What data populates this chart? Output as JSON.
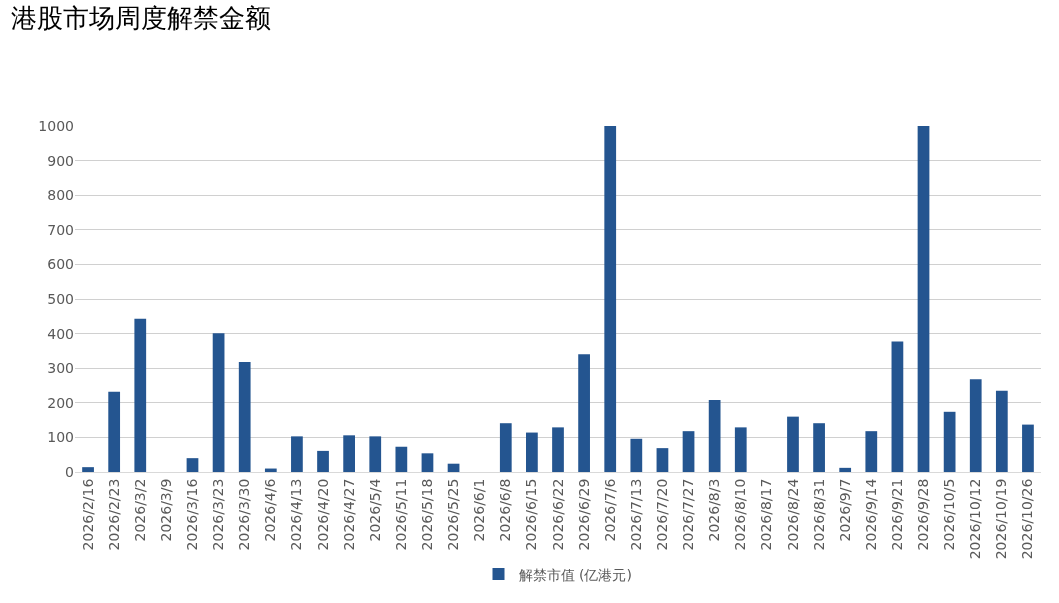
{
  "chart_data": {
    "type": "bar",
    "title": "港股市场周度解禁金额",
    "categories": [
      "2026/2/16",
      "2026/2/23",
      "2026/3/2",
      "2026/3/9",
      "2026/3/16",
      "2026/3/23",
      "2026/3/30",
      "2026/4/6",
      "2026/4/13",
      "2026/4/20",
      "2026/4/27",
      "2026/5/4",
      "2026/5/11",
      "2026/5/18",
      "2026/5/25",
      "2026/6/1",
      "2026/6/8",
      "2026/6/15",
      "2026/6/22",
      "2026/6/29",
      "2026/7/6",
      "2026/7/13",
      "2026/7/20",
      "2026/7/27",
      "2026/8/3",
      "2026/8/10",
      "2026/8/17",
      "2026/8/24",
      "2026/8/31",
      "2026/9/7",
      "2026/9/14",
      "2026/9/21",
      "2026/9/28",
      "2026/10/5",
      "2026/10/12",
      "2026/10/19",
      "2026/10/26"
    ],
    "series": [
      {
        "name": "解禁市值 (亿港元)",
        "color": "#245590",
        "values": [
          14,
          232,
          443,
          0,
          40,
          401,
          318,
          10,
          103,
          61,
          106,
          103,
          73,
          54,
          24,
          0,
          141,
          114,
          129,
          340,
          1000,
          96,
          69,
          118,
          208,
          129,
          0,
          160,
          141,
          12,
          118,
          377,
          1000,
          174,
          268,
          235,
          137
        ]
      }
    ],
    "ylim": [
      0,
      1000
    ],
    "yticks": [
      0,
      100,
      200,
      300,
      400,
      500,
      600,
      700,
      800,
      900,
      1000
    ],
    "grid": "y",
    "legend": "bottom"
  }
}
